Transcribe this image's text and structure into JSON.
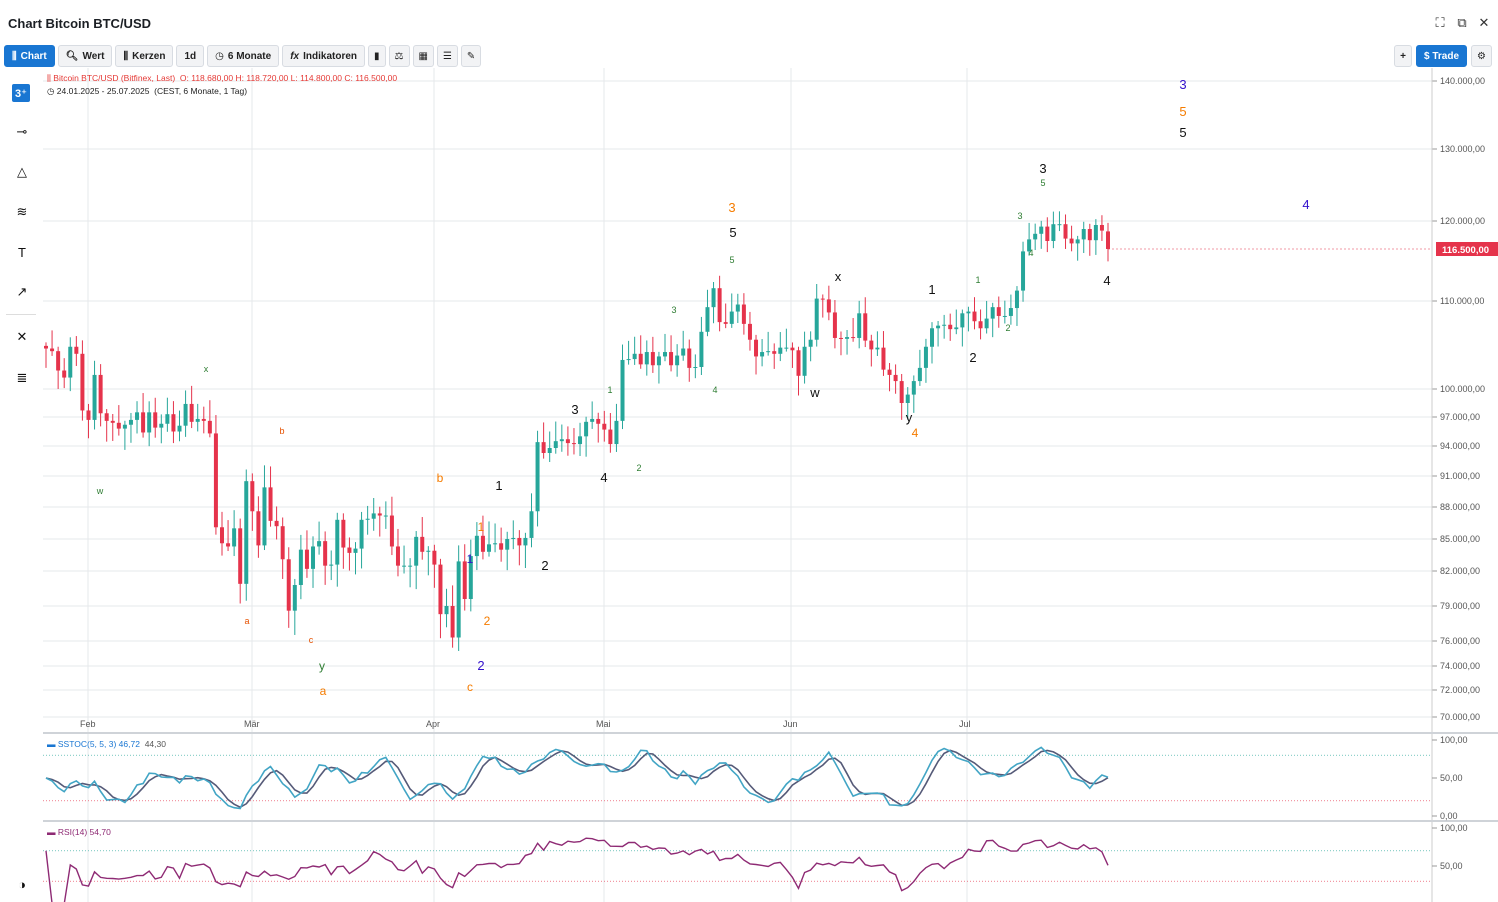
{
  "window": {
    "title": "Chart Bitcoin BTC/USD"
  },
  "toolbar": {
    "chart": "Chart",
    "wert": "Wert",
    "kerzen": "Kerzen",
    "interval": "1d",
    "range": "6 Monate",
    "indikatoren": "Indikatoren",
    "trade": "$ Trade"
  },
  "legend": {
    "instrument": "Bitcoin BTC/USD (Bitfinex, Last)",
    "ohlc": "O: 118.680,00  H: 118.720,00  L: 114.800,00  C: 116.500,00",
    "range": "24.01.2025 - 25.07.2025",
    "tz": "(CEST, 6 Monate, 1 Tag)"
  },
  "sstoc": {
    "label": "SSTOC(5, 5, 3)",
    "k": "46,72",
    "d": "44,30"
  },
  "rsi": {
    "label": "RSI(14)",
    "value": "54,70"
  },
  "colors": {
    "up": "#26a69a",
    "down": "#e5334b",
    "accent": "#1976d2",
    "stoch_k": "#42a5c5",
    "stoch_d": "#555a78",
    "rsi": "#8e2a74"
  },
  "chart_data": {
    "type": "candlestick",
    "price_axis": [
      "140.000,00",
      "130.000,00",
      "120.000,00",
      "110.000,00",
      "100.000,00",
      "97.000,00",
      "94.000,00",
      "91.000,00",
      "88.000,00",
      "85.000,00",
      "82.000,00",
      "79.000,00",
      "76.000,00",
      "74.000,00",
      "72.000,00",
      "70.000,00"
    ],
    "price_axis_values": [
      140000,
      130000,
      120000,
      110000,
      100000,
      97000,
      94000,
      91000,
      88000,
      85000,
      82000,
      79000,
      76000,
      74000,
      72000,
      70000
    ],
    "last_price": "116.500,00",
    "x_labels": [
      "Feb",
      "Mär",
      "Apr",
      "Mai",
      "Jun",
      "Jul"
    ],
    "stoch_axis": [
      "100,00",
      "50,00",
      "0,00"
    ],
    "rsi_axis": [
      "100,00",
      "50,00"
    ],
    "closes": [
      104600,
      104300,
      102100,
      101300,
      104800,
      104000,
      97700,
      96700,
      101600,
      97400,
      96600,
      96400,
      95800,
      96200,
      96700,
      97500,
      95400,
      97500,
      95900,
      96300,
      97300,
      95500,
      96100,
      98400,
      96500,
      96800,
      96600,
      95300,
      86100,
      84600,
      84300,
      86000,
      80900,
      90500,
      87600,
      84400,
      89900,
      86700,
      86200,
      83100,
      78600,
      80800,
      84000,
      82200,
      84300,
      84800,
      82500,
      82600,
      86800,
      84200,
      83700,
      84100,
      86800,
      86900,
      87400,
      87200,
      87200,
      84300,
      82500,
      82500,
      82500,
      85200,
      83800,
      83900,
      82600,
      78300,
      79000,
      76300,
      82900,
      79600,
      83400,
      85300,
      83800,
      84500,
      84600,
      84000,
      85000,
      85100,
      84400,
      85100,
      87600,
      94400,
      93300,
      93800,
      94500,
      94700,
      94300,
      94200,
      95000,
      96500,
      96800,
      96300,
      95700,
      94200,
      96600,
      103300,
      103400,
      104000,
      102800,
      104200,
      102700,
      103700,
      104200,
      102700,
      103800,
      104600,
      102400,
      102500,
      106500,
      109300,
      111600,
      107600,
      107400,
      108800,
      109600,
      107400,
      105600,
      103700,
      104200,
      104300,
      104000,
      104700,
      104700,
      104400,
      101500,
      104800,
      105600,
      110300,
      110200,
      108700,
      105800,
      105700,
      105900,
      105800,
      108600,
      105500,
      104500,
      104700,
      102200,
      101600,
      100900,
      98500,
      99400,
      100900,
      102400,
      104800,
      106900,
      107200,
      107300,
      106800,
      107000,
      108600,
      108800,
      107700,
      106900,
      108000,
      109300,
      108300,
      108300,
      109200,
      111300,
      116200,
      117700,
      118400,
      119300,
      117500,
      119600,
      119600,
      117800,
      117200,
      117700,
      119000,
      117600,
      119500,
      118800,
      116500
    ],
    "opens": [
      104900,
      104600,
      104300,
      102100,
      101300,
      104800,
      104000,
      97700,
      96700,
      101600,
      97400,
      96600,
      96400,
      95800,
      96200,
      96700,
      97500,
      95400,
      97500,
      95900,
      96300,
      97300,
      95500,
      96100,
      98400,
      96500,
      96800,
      96600,
      95300,
      86100,
      84600,
      84300,
      86000,
      80900,
      90500,
      87600,
      84400,
      89900,
      86700,
      86200,
      83100,
      78600,
      80800,
      84000,
      82200,
      84300,
      84800,
      82500,
      82600,
      86800,
      84200,
      83700,
      84100,
      86800,
      86900,
      87400,
      87200,
      87200,
      84300,
      82500,
      82500,
      82500,
      85200,
      83800,
      83900,
      82600,
      78300,
      79000,
      76300,
      82900,
      79600,
      83400,
      85300,
      83800,
      84500,
      84600,
      84000,
      85000,
      85100,
      84400,
      85100,
      87600,
      94400,
      93300,
      93800,
      94500,
      94700,
      94300,
      94200,
      95000,
      96500,
      96800,
      96300,
      95700,
      94200,
      96600,
      103300,
      103400,
      104000,
      102800,
      104200,
      102700,
      103700,
      104200,
      102700,
      103800,
      104600,
      102400,
      102500,
      106500,
      109300,
      111600,
      107600,
      107400,
      108800,
      109600,
      107400,
      105600,
      103700,
      104200,
      104300,
      104000,
      104700,
      104700,
      104400,
      101500,
      104800,
      105600,
      110300,
      110200,
      108700,
      105800,
      105700,
      105900,
      105800,
      108600,
      105500,
      104500,
      104700,
      102200,
      101600,
      100900,
      98500,
      99400,
      100900,
      102400,
      104800,
      106900,
      107200,
      107300,
      106800,
      107000,
      108600,
      108800,
      107700,
      106900,
      108000,
      109300,
      108300,
      108300,
      109200,
      111300,
      116200,
      117700,
      118400,
      119300,
      117500,
      119600,
      119600,
      117800,
      117200,
      117700,
      119000,
      117600,
      119500,
      118700
    ]
  },
  "wave_labels": [
    {
      "t": "w",
      "c": "#2e7d32",
      "s": "s"
    },
    {
      "t": "x",
      "c": "#2e7d32",
      "s": "s"
    },
    {
      "t": "b",
      "c": "#e65100",
      "s": "s"
    },
    {
      "t": "a",
      "c": "#e65100",
      "s": "s"
    },
    {
      "t": "c",
      "c": "#e65100",
      "s": "s"
    },
    {
      "t": "y",
      "c": "#2e7d32",
      "s": "m"
    },
    {
      "t": "a",
      "c": "#f57c00",
      "s": "m"
    },
    {
      "t": "b",
      "c": "#f57c00",
      "s": "m"
    },
    {
      "t": "1",
      "c": "#f57c00",
      "s": "m"
    },
    {
      "t": "1",
      "c": "#3311cc",
      "s": "m"
    },
    {
      "t": "2",
      "c": "#f57c00",
      "s": "m"
    },
    {
      "t": "2",
      "c": "#3311cc",
      "s": "l"
    },
    {
      "t": "c",
      "c": "#f57c00",
      "s": "m"
    },
    {
      "t": "1",
      "c": "#111",
      "s": "l"
    },
    {
      "t": "2",
      "c": "#111",
      "s": "l"
    },
    {
      "t": "3",
      "c": "#111",
      "s": "l"
    },
    {
      "t": "4",
      "c": "#111",
      "s": "l"
    },
    {
      "t": "1",
      "c": "#2e7d32",
      "s": "s"
    },
    {
      "t": "2",
      "c": "#2e7d32",
      "s": "s"
    },
    {
      "t": "3",
      "c": "#2e7d32",
      "s": "s"
    },
    {
      "t": "4",
      "c": "#2e7d32",
      "s": "s"
    },
    {
      "t": "5",
      "c": "#2e7d32",
      "s": "s"
    },
    {
      "t": "3",
      "c": "#f57c00",
      "s": "l"
    },
    {
      "t": "5",
      "c": "#111",
      "s": "l"
    },
    {
      "t": "x",
      "c": "#111",
      "s": "l"
    },
    {
      "t": "w",
      "c": "#111",
      "s": "l"
    },
    {
      "t": "y",
      "c": "#111",
      "s": "l"
    },
    {
      "t": "4",
      "c": "#f57c00",
      "s": "m"
    },
    {
      "t": "1",
      "c": "#111",
      "s": "l"
    },
    {
      "t": "2",
      "c": "#111",
      "s": "l"
    },
    {
      "t": "1",
      "c": "#2e7d32",
      "s": "s"
    },
    {
      "t": "2",
      "c": "#2e7d32",
      "s": "s"
    },
    {
      "t": "3",
      "c": "#2e7d32",
      "s": "s"
    },
    {
      "t": "4",
      "c": "#2e7d32",
      "s": "s"
    },
    {
      "t": "5",
      "c": "#2e7d32",
      "s": "s"
    },
    {
      "t": "3",
      "c": "#111",
      "s": "l"
    },
    {
      "t": "4",
      "c": "#111",
      "s": "l"
    },
    {
      "t": "3",
      "c": "#3311cc",
      "s": "l"
    },
    {
      "t": "5",
      "c": "#f57c00",
      "s": "l"
    },
    {
      "t": "5",
      "c": "#111",
      "s": "l"
    },
    {
      "t": "4",
      "c": "#3311cc",
      "s": "l"
    }
  ]
}
